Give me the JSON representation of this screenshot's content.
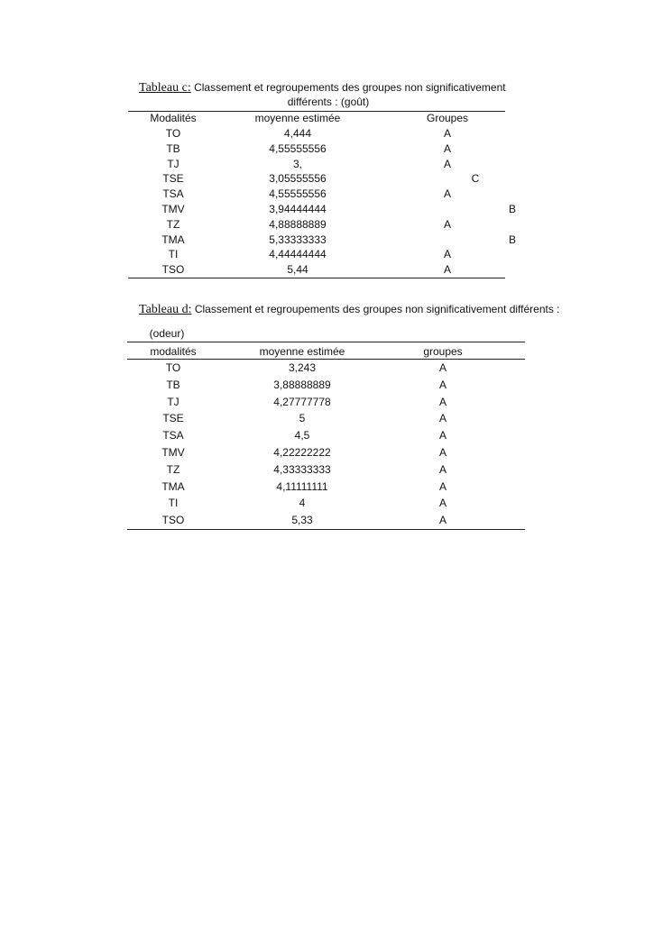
{
  "table_c": {
    "caption_label": "Tableau c:",
    "caption_text": "Classement et regroupements des groupes non significativement",
    "caption_text_line2": "différents : (goût)",
    "headers": [
      "Modalités",
      "moyenne estimée",
      "Groupes"
    ],
    "rows": [
      {
        "modalite": "TO",
        "moyenne": "4,444",
        "groupe_a": "A",
        "groupe_c": "",
        "groupe_b": ""
      },
      {
        "modalite": "TB",
        "moyenne": "4,55555556",
        "groupe_a": "A",
        "groupe_c": "",
        "groupe_b": ""
      },
      {
        "modalite": "TJ",
        "moyenne": "3,",
        "groupe_a": "A",
        "groupe_c": "",
        "groupe_b": ""
      },
      {
        "modalite": "TSE",
        "moyenne": "3,05555556",
        "groupe_a": "",
        "groupe_c": "C",
        "groupe_b": ""
      },
      {
        "modalite": "TSA",
        "moyenne": "4,55555556",
        "groupe_a": "A",
        "groupe_c": "",
        "groupe_b": ""
      },
      {
        "modalite": "TMV",
        "moyenne": "3,94444444",
        "groupe_a": "",
        "groupe_c": "",
        "groupe_b": "B"
      },
      {
        "modalite": "TZ",
        "moyenne": "4,88888889",
        "groupe_a": "A",
        "groupe_c": "",
        "groupe_b": ""
      },
      {
        "modalite": "TMA",
        "moyenne": "5,33333333",
        "groupe_a": "",
        "groupe_c": "",
        "groupe_b": "B"
      },
      {
        "modalite": "TI",
        "moyenne": "4,44444444",
        "groupe_a": "A",
        "groupe_c": "",
        "groupe_b": ""
      },
      {
        "modalite": "TSO",
        "moyenne": "5,44",
        "groupe_a": "A",
        "groupe_c": "",
        "groupe_b": ""
      }
    ]
  },
  "table_d": {
    "caption_label": "Tableau d:",
    "caption_text": "Classement et regroupements des groupes non significativement différents :",
    "subtitle": "(odeur)",
    "headers": [
      "modalités",
      "moyenne estimée",
      "groupes"
    ],
    "rows": [
      {
        "modalite": "TO",
        "moyenne": "3,243",
        "groupe": "A"
      },
      {
        "modalite": "TB",
        "moyenne": "3,88888889",
        "groupe": "A"
      },
      {
        "modalite": "TJ",
        "moyenne": "4,27777778",
        "groupe": "A"
      },
      {
        "modalite": "TSE",
        "moyenne": "5",
        "groupe": "A"
      },
      {
        "modalite": "TSA",
        "moyenne": "4,5",
        "groupe": "A"
      },
      {
        "modalite": "TMV",
        "moyenne": "4,22222222",
        "groupe": "A"
      },
      {
        "modalite": "TZ",
        "moyenne": "4,33333333",
        "groupe": "A"
      },
      {
        "modalite": "TMA",
        "moyenne": "4,11111111",
        "groupe": "A"
      },
      {
        "modalite": "TI",
        "moyenne": "4",
        "groupe": "A"
      },
      {
        "modalite": "TSO",
        "moyenne": "5,33",
        "groupe": "A"
      }
    ]
  }
}
